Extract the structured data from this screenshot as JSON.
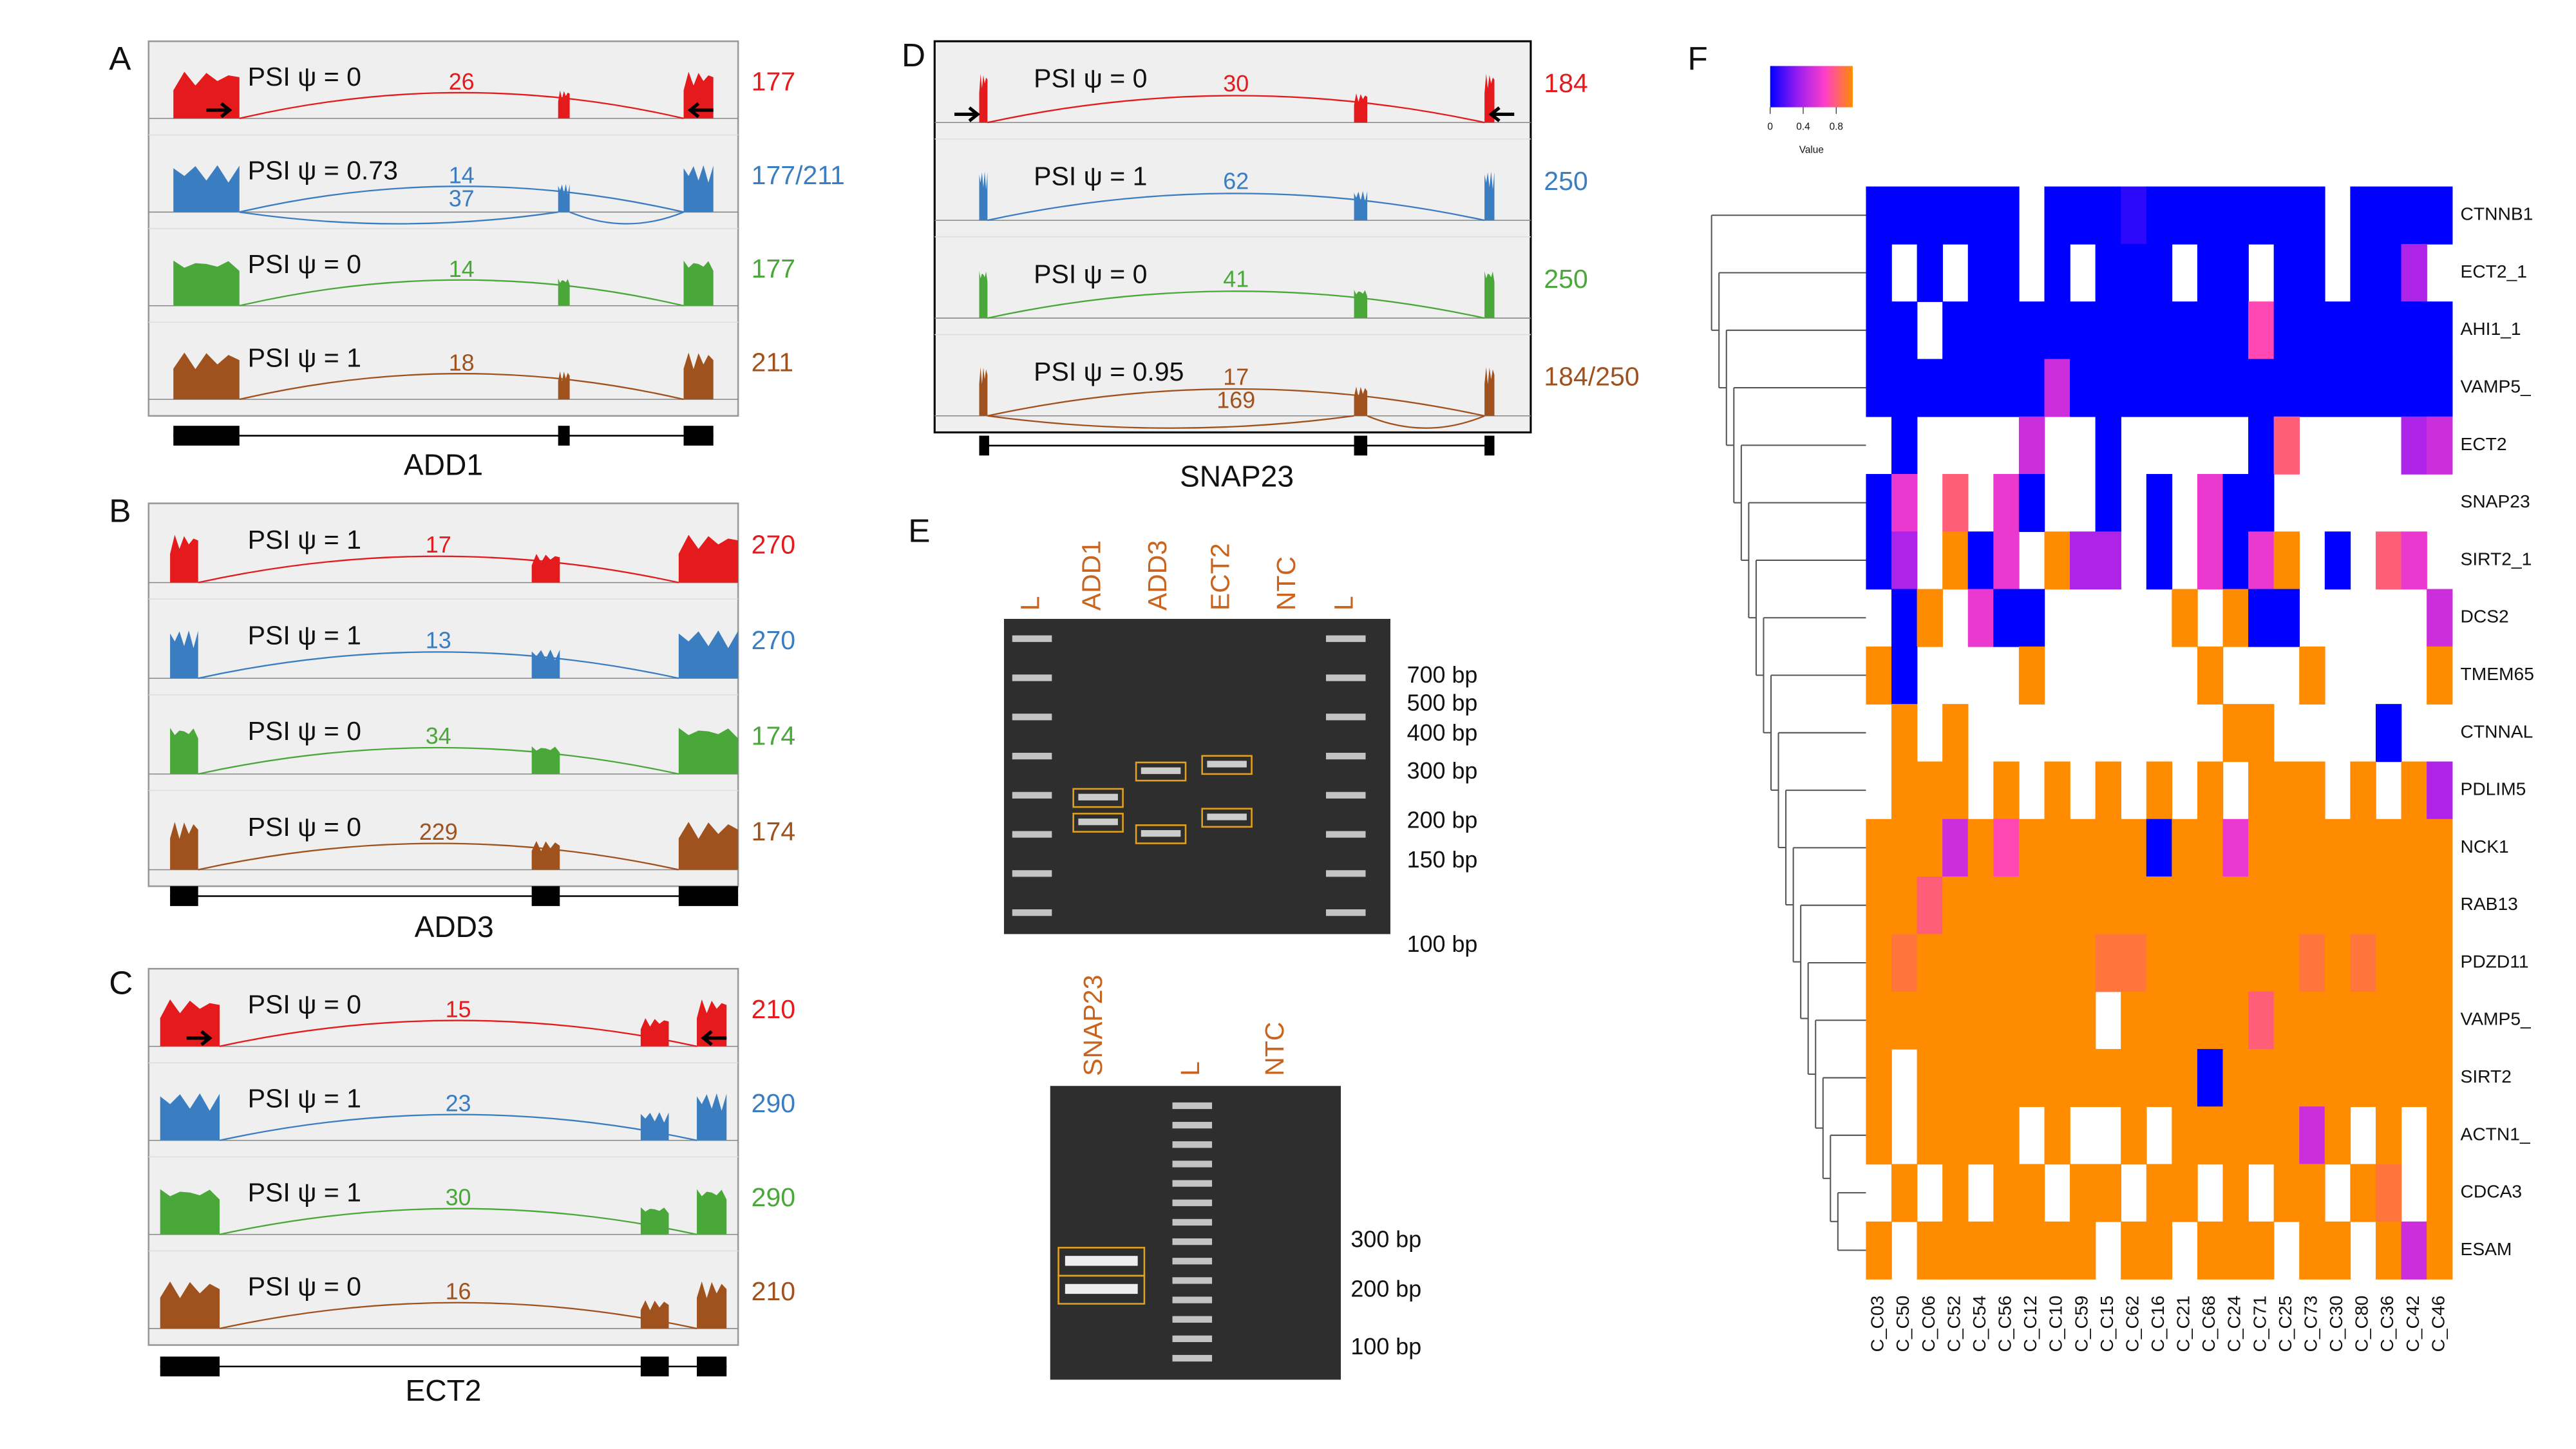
{
  "panels": [
    {
      "letter": "A",
      "gene": "ADD1",
      "tracks": [
        {
          "psi": "PSI ψ = 0",
          "junctions": [
            26
          ],
          "total": 177,
          "color": "#e41a1c"
        },
        {
          "psi": "PSI ψ = 0.73",
          "junctions": [
            14,
            37
          ],
          "total": "177/211",
          "color": "#3a7dc0"
        },
        {
          "psi": "PSI ψ = 0",
          "junctions": [
            14
          ],
          "total": 177,
          "color": "#4aa83a"
        },
        {
          "psi": "PSI ψ = 1",
          "junctions": [
            18
          ],
          "total": 211,
          "color": "#a0521e"
        }
      ]
    },
    {
      "letter": "B",
      "gene": "ADD3",
      "tracks": [
        {
          "psi": "PSI ψ = 1",
          "junctions": [
            17
          ],
          "total": 270,
          "color": "#e41a1c"
        },
        {
          "psi": "PSI ψ = 1",
          "junctions": [
            13
          ],
          "total": 270,
          "color": "#3a7dc0"
        },
        {
          "psi": "PSI ψ = 0",
          "junctions": [
            34
          ],
          "total": 174,
          "color": "#4aa83a"
        },
        {
          "psi": "PSI ψ = 0",
          "junctions": [
            229
          ],
          "total": 174,
          "color": "#a0521e"
        }
      ]
    },
    {
      "letter": "C",
      "gene": "ECT2",
      "tracks": [
        {
          "psi": "PSI ψ = 0",
          "junctions": [
            15
          ],
          "total": 210,
          "color": "#e41a1c"
        },
        {
          "psi": "PSI ψ = 1",
          "junctions": [
            23
          ],
          "total": 290,
          "color": "#3a7dc0"
        },
        {
          "psi": "PSI ψ = 1",
          "junctions": [
            30
          ],
          "total": 290,
          "color": "#4aa83a"
        },
        {
          "psi": "PSI ψ = 0",
          "junctions": [
            16
          ],
          "total": 210,
          "color": "#a0521e"
        }
      ]
    },
    {
      "letter": "D",
      "gene": "SNAP23",
      "tracks": [
        {
          "psi": "PSI ψ = 0",
          "junctions": [
            30
          ],
          "total": 184,
          "color": "#e41a1c"
        },
        {
          "psi": "PSI ψ = 1",
          "junctions": [
            62
          ],
          "total": 250,
          "color": "#3a7dc0"
        },
        {
          "psi": "PSI ψ = 0",
          "junctions": [
            41
          ],
          "total": 250,
          "color": "#4aa83a"
        },
        {
          "psi": "PSI ψ = 0.95",
          "junctions": [
            17,
            169
          ],
          "total": "184/250",
          "color": "#a0521e"
        }
      ]
    }
  ],
  "gels": {
    "letter": "E",
    "gel1": {
      "lanes": [
        "L",
        "ADD1",
        "ADD3",
        "ECT2",
        "NTC",
        "L"
      ],
      "sizes": [
        "700 bp",
        "500 bp",
        "400 bp",
        "300 bp",
        "200 bp",
        "150 bp",
        "100 bp"
      ]
    },
    "gel2": {
      "lanes": [
        "SNAP23",
        "L",
        "NTC"
      ],
      "sizes": [
        "300 bp",
        "200 bp",
        "100 bp"
      ]
    }
  },
  "heatmap": {
    "letter": "F",
    "rows": [
      "CTNNB1",
      "ECT2_1",
      "AHI1_1",
      "VAMP5_",
      "ECT2",
      "SNAP23",
      "SIRT2_1",
      "DCS2",
      "TMEM65",
      "CTNNAL",
      "PDLIM5",
      "NCK1",
      "RAB13",
      "PDZD11",
      "VAMP5_",
      "SIRT2",
      "ACTN1_",
      "CDCA3",
      "ESAM"
    ],
    "columns": [
      "C_C03",
      "C_C50",
      "C_C06",
      "C_C52",
      "C_C54",
      "C_C56",
      "C_C12",
      "C_C10",
      "C_C59",
      "C_C15",
      "C_C62",
      "C_C16",
      "C_C21",
      "C_C68",
      "C_C24",
      "C_C71",
      "C_C25",
      "C_C73",
      "C_C30",
      "C_C80",
      "C_C36",
      "C_C42",
      "C_C46"
    ],
    "values": [
      [
        0,
        0,
        0,
        0,
        0,
        0,
        null,
        0,
        0,
        0,
        0.1,
        0,
        0,
        0,
        0,
        0,
        0,
        0,
        null,
        0,
        0,
        0,
        0
      ],
      [
        0,
        null,
        0,
        null,
        0,
        0,
        null,
        0,
        null,
        0,
        0,
        0,
        null,
        0,
        0,
        null,
        0,
        0,
        null,
        0,
        0,
        0.4,
        null
      ],
      [
        0,
        0,
        null,
        0,
        0,
        0,
        0,
        0,
        0,
        0,
        0,
        0,
        0,
        0,
        0,
        0.7,
        0,
        0,
        0,
        0,
        0,
        0,
        0
      ],
      [
        0,
        0,
        0,
        0,
        0,
        0,
        0,
        0.5,
        0,
        0,
        0,
        0,
        0,
        0,
        0,
        0,
        0,
        0,
        0,
        0,
        0,
        0,
        0
      ],
      [
        null,
        0,
        null,
        null,
        null,
        null,
        0.5,
        null,
        null,
        0,
        null,
        null,
        null,
        null,
        null,
        0,
        0.8,
        null,
        null,
        null,
        null,
        0.4,
        0.5
      ],
      [
        0,
        0.6,
        null,
        0.8,
        null,
        0.6,
        0,
        null,
        null,
        0,
        null,
        0,
        null,
        0.6,
        0,
        0,
        null,
        null,
        null,
        null,
        null,
        null,
        null
      ],
      [
        0,
        0.4,
        null,
        1,
        0,
        0.6,
        null,
        1,
        0.4,
        0.4,
        null,
        0,
        null,
        0.6,
        0,
        0.6,
        1,
        null,
        0,
        null,
        0.8,
        0.6,
        null
      ],
      [
        null,
        0,
        1,
        null,
        0.6,
        0,
        0,
        null,
        null,
        null,
        null,
        null,
        1,
        null,
        1,
        0,
        0,
        null,
        null,
        null,
        null,
        null,
        0.5
      ],
      [
        1,
        0,
        null,
        null,
        null,
        null,
        1,
        null,
        null,
        null,
        null,
        null,
        null,
        1,
        null,
        null,
        null,
        1,
        null,
        null,
        null,
        null,
        1
      ],
      [
        null,
        1,
        null,
        1,
        null,
        null,
        null,
        null,
        null,
        null,
        null,
        null,
        null,
        null,
        1,
        1,
        null,
        null,
        null,
        null,
        0,
        null,
        null
      ],
      [
        null,
        1,
        1,
        1,
        null,
        1,
        null,
        1,
        null,
        1,
        null,
        1,
        null,
        1,
        null,
        1,
        1,
        1,
        null,
        1,
        null,
        1,
        0.4
      ],
      [
        1,
        1,
        1,
        0.5,
        1,
        0.7,
        1,
        1,
        1,
        1,
        1,
        0,
        1,
        1,
        0.6,
        1,
        1,
        1,
        1,
        1,
        1,
        1,
        1
      ],
      [
        1,
        1,
        0.8,
        1,
        1,
        1,
        1,
        1,
        1,
        1,
        1,
        1,
        1,
        1,
        1,
        1,
        1,
        1,
        1,
        1,
        1,
        1,
        1
      ],
      [
        1,
        0.9,
        1,
        1,
        1,
        1,
        1,
        1,
        1,
        0.9,
        0.9,
        1,
        1,
        1,
        1,
        1,
        1,
        0.9,
        1,
        0.9,
        1,
        1,
        1
      ],
      [
        1,
        1,
        1,
        1,
        1,
        1,
        1,
        1,
        1,
        null,
        1,
        1,
        1,
        1,
        1,
        0.8,
        1,
        1,
        1,
        1,
        1,
        1,
        1
      ],
      [
        1,
        null,
        1,
        1,
        1,
        1,
        1,
        1,
        1,
        1,
        1,
        1,
        1,
        0,
        1,
        1,
        1,
        1,
        1,
        1,
        1,
        1,
        1
      ],
      [
        1,
        null,
        1,
        1,
        1,
        1,
        null,
        1,
        null,
        null,
        1,
        null,
        1,
        1,
        1,
        1,
        1,
        0.5,
        1,
        null,
        1,
        null,
        1
      ],
      [
        null,
        1,
        null,
        1,
        null,
        1,
        1,
        null,
        1,
        1,
        null,
        1,
        1,
        null,
        1,
        null,
        1,
        1,
        null,
        1,
        0.9,
        null,
        1
      ],
      [
        1,
        null,
        1,
        1,
        1,
        1,
        1,
        1,
        1,
        null,
        1,
        1,
        null,
        1,
        1,
        1,
        null,
        1,
        1,
        null,
        1,
        0.5,
        1
      ]
    ],
    "zlim": [
      0,
      1
    ],
    "colors": [
      "#0000ff",
      "#9a1cf0",
      "#ff40c8",
      "#ff8c00"
    ],
    "colorbar": {
      "ticks": [
        0,
        0.4,
        0.8
      ],
      "label": "Value"
    }
  }
}
